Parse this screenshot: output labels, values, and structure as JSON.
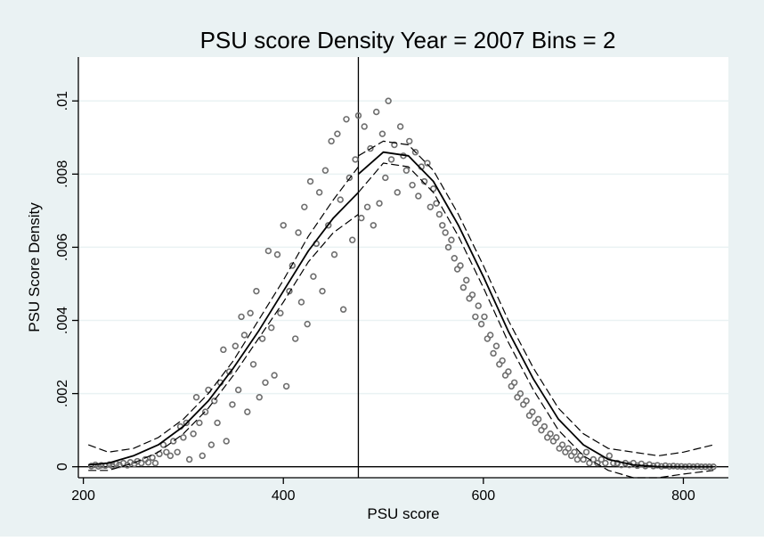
{
  "chart_data": {
    "type": "scatter",
    "title": "PSU score Density Year = 2007 Bins = 2",
    "xlabel": "PSU score",
    "ylabel": "PSU Score Density",
    "xlim": [
      195,
      845
    ],
    "ylim": [
      -0.0003,
      0.0112
    ],
    "x_ticks": [
      200,
      400,
      600,
      800
    ],
    "x_tick_labels": [
      "200",
      "400",
      "600",
      "800"
    ],
    "y_ticks": [
      0,
      0.002,
      0.004,
      0.006,
      0.008,
      0.01
    ],
    "y_tick_labels": [
      "0",
      ".002",
      ".004",
      ".006",
      ".008",
      ".01"
    ],
    "grid": "horizontal",
    "legend": "none",
    "cutoff_x": 475,
    "colors": {
      "background": "#eaf2f3",
      "plot_area": "#ffffff",
      "gridline": "#eaf2f3",
      "points": "#6e6e6e",
      "lines": "#000000"
    },
    "points": [
      [
        208,
        2e-05
      ],
      [
        212,
        5e-05
      ],
      [
        215,
        1e-05
      ],
      [
        218,
        4e-05
      ],
      [
        222,
        3e-05
      ],
      [
        226,
        6e-05
      ],
      [
        229,
        2e-05
      ],
      [
        233,
        8e-05
      ],
      [
        236,
        5e-05
      ],
      [
        240,
        0.0001
      ],
      [
        244,
        4e-05
      ],
      [
        247,
        0.00012
      ],
      [
        251,
        8e-05
      ],
      [
        254,
        0.00015
      ],
      [
        258,
        0.0001
      ],
      [
        262,
        0.0002
      ],
      [
        265,
        0.00012
      ],
      [
        269,
        0.00025
      ],
      [
        272,
        0.0001
      ],
      [
        276,
        0.00035
      ],
      [
        280,
        0.0006
      ],
      [
        283,
        0.0004
      ],
      [
        287,
        0.0003
      ],
      [
        290,
        0.0007
      ],
      [
        294,
        0.0004
      ],
      [
        297,
        0.0011
      ],
      [
        300,
        0.0008
      ],
      [
        303,
        0.0012
      ],
      [
        306,
        0.0002
      ],
      [
        310,
        0.0009
      ],
      [
        313,
        0.0019
      ],
      [
        316,
        0.0012
      ],
      [
        319,
        0.0003
      ],
      [
        322,
        0.0015
      ],
      [
        325,
        0.0021
      ],
      [
        328,
        0.0006
      ],
      [
        331,
        0.0018
      ],
      [
        334,
        0.0012
      ],
      [
        337,
        0.0023
      ],
      [
        340,
        0.0032
      ],
      [
        343,
        0.0007
      ],
      [
        346,
        0.0026
      ],
      [
        349,
        0.0017
      ],
      [
        352,
        0.0033
      ],
      [
        355,
        0.0021
      ],
      [
        358,
        0.0041
      ],
      [
        361,
        0.0036
      ],
      [
        364,
        0.0015
      ],
      [
        367,
        0.0042
      ],
      [
        370,
        0.0028
      ],
      [
        373,
        0.0048
      ],
      [
        376,
        0.0019
      ],
      [
        379,
        0.0035
      ],
      [
        382,
        0.0023
      ],
      [
        385,
        0.0059
      ],
      [
        388,
        0.0038
      ],
      [
        391,
        0.0025
      ],
      [
        394,
        0.0058
      ],
      [
        397,
        0.0042
      ],
      [
        400,
        0.0066
      ],
      [
        403,
        0.0022
      ],
      [
        406,
        0.0048
      ],
      [
        409,
        0.0055
      ],
      [
        412,
        0.0035
      ],
      [
        415,
        0.0064
      ],
      [
        418,
        0.0045
      ],
      [
        421,
        0.0071
      ],
      [
        424,
        0.0039
      ],
      [
        427,
        0.0078
      ],
      [
        430,
        0.0052
      ],
      [
        433,
        0.0061
      ],
      [
        436,
        0.0075
      ],
      [
        439,
        0.0048
      ],
      [
        442,
        0.0081
      ],
      [
        445,
        0.0066
      ],
      [
        448,
        0.0089
      ],
      [
        451,
        0.0058
      ],
      [
        454,
        0.0091
      ],
      [
        457,
        0.0073
      ],
      [
        460,
        0.0043
      ],
      [
        463,
        0.0095
      ],
      [
        466,
        0.0079
      ],
      [
        469,
        0.0062
      ],
      [
        472,
        0.0084
      ],
      [
        475,
        0.0096
      ],
      [
        478,
        0.0068
      ],
      [
        481,
        0.0093
      ],
      [
        484,
        0.0071
      ],
      [
        487,
        0.0087
      ],
      [
        490,
        0.0066
      ],
      [
        493,
        0.0097
      ],
      [
        496,
        0.0072
      ],
      [
        499,
        0.0091
      ],
      [
        502,
        0.0079
      ],
      [
        505,
        0.01
      ],
      [
        508,
        0.0084
      ],
      [
        511,
        0.0088
      ],
      [
        514,
        0.0075
      ],
      [
        517,
        0.0093
      ],
      [
        520,
        0.0085
      ],
      [
        523,
        0.0081
      ],
      [
        526,
        0.0089
      ],
      [
        529,
        0.0077
      ],
      [
        532,
        0.0086
      ],
      [
        535,
        0.0074
      ],
      [
        538,
        0.0082
      ],
      [
        541,
        0.0078
      ],
      [
        544,
        0.0083
      ],
      [
        547,
        0.0071
      ],
      [
        550,
        0.0076
      ],
      [
        553,
        0.0072
      ],
      [
        556,
        0.0069
      ],
      [
        559,
        0.0066
      ],
      [
        562,
        0.0064
      ],
      [
        565,
        0.006
      ],
      [
        568,
        0.0062
      ],
      [
        571,
        0.0057
      ],
      [
        574,
        0.0054
      ],
      [
        577,
        0.0055
      ],
      [
        580,
        0.0049
      ],
      [
        583,
        0.0051
      ],
      [
        586,
        0.0046
      ],
      [
        589,
        0.0047
      ],
      [
        592,
        0.0041
      ],
      [
        595,
        0.0044
      ],
      [
        598,
        0.0039
      ],
      [
        601,
        0.0041
      ],
      [
        604,
        0.0035
      ],
      [
        607,
        0.0036
      ],
      [
        610,
        0.0031
      ],
      [
        613,
        0.0033
      ],
      [
        616,
        0.0028
      ],
      [
        619,
        0.0029
      ],
      [
        622,
        0.0025
      ],
      [
        625,
        0.0026
      ],
      [
        628,
        0.0022
      ],
      [
        631,
        0.0023
      ],
      [
        634,
        0.0019
      ],
      [
        637,
        0.002
      ],
      [
        640,
        0.0017
      ],
      [
        643,
        0.0018
      ],
      [
        646,
        0.0014
      ],
      [
        649,
        0.0015
      ],
      [
        652,
        0.0012
      ],
      [
        655,
        0.0013
      ],
      [
        658,
        0.001
      ],
      [
        661,
        0.0011
      ],
      [
        664,
        0.0008
      ],
      [
        667,
        0.0009
      ],
      [
        670,
        0.0007
      ],
      [
        673,
        0.0008
      ],
      [
        676,
        0.0005
      ],
      [
        679,
        0.0006
      ],
      [
        682,
        0.0004
      ],
      [
        685,
        0.0005
      ],
      [
        688,
        0.0003
      ],
      [
        691,
        0.0004
      ],
      [
        694,
        0.0002
      ],
      [
        697,
        0.0003
      ],
      [
        700,
        0.0002
      ],
      [
        703,
        0.0004
      ],
      [
        706,
        0.0001
      ],
      [
        710,
        0.0002
      ],
      [
        714,
        0.0001
      ],
      [
        718,
        0.0002
      ],
      [
        722,
        0.0001
      ],
      [
        726,
        0.0003
      ],
      [
        730,
        0.0001
      ],
      [
        734,
        0.0001
      ],
      [
        738,
        5e-05
      ],
      [
        742,
        0.0001
      ],
      [
        746,
        5e-05
      ],
      [
        750,
        0.0001
      ],
      [
        754,
        3e-05
      ],
      [
        758,
        8e-05
      ],
      [
        762,
        2e-05
      ],
      [
        766,
        6e-05
      ],
      [
        770,
        2e-05
      ],
      [
        774,
        4e-05
      ],
      [
        778,
        1e-05
      ],
      [
        782,
        3e-05
      ],
      [
        786,
        1e-05
      ],
      [
        790,
        2e-05
      ],
      [
        794,
        1e-05
      ],
      [
        798,
        1e-05
      ],
      [
        802,
        0.0
      ],
      [
        806,
        1e-05
      ],
      [
        810,
        0.0
      ],
      [
        814,
        1e-05
      ],
      [
        818,
        0.0
      ],
      [
        822,
        0.0
      ],
      [
        826,
        0.0
      ],
      [
        830,
        0.0
      ]
    ],
    "fit_left": {
      "x": [
        205,
        225,
        250,
        275,
        300,
        325,
        350,
        375,
        400,
        425,
        450,
        475
      ],
      "y": [
        5e-05,
        0.0001,
        0.0003,
        0.0006,
        0.0011,
        0.0018,
        0.0027,
        0.0037,
        0.0048,
        0.0059,
        0.0068,
        0.0075
      ]
    },
    "ci_left_upper": {
      "x": [
        205,
        225,
        250,
        275,
        300,
        325,
        350,
        375,
        400,
        425,
        450,
        475
      ],
      "y": [
        0.0006,
        0.0004,
        0.0005,
        0.0008,
        0.0013,
        0.002,
        0.0029,
        0.004,
        0.0051,
        0.0063,
        0.0073,
        0.0082
      ]
    },
    "ci_left_lower": {
      "x": [
        205,
        225,
        250,
        275,
        300,
        325,
        350,
        375,
        400,
        425,
        450,
        475
      ],
      "y": [
        -0.0001,
        -0.0001,
        0.0001,
        0.0004,
        0.0009,
        0.0016,
        0.0025,
        0.0035,
        0.0045,
        0.0056,
        0.0064,
        0.0069
      ]
    },
    "fit_right": {
      "x": [
        475,
        500,
        525,
        550,
        575,
        600,
        625,
        650,
        675,
        700,
        725,
        750,
        775,
        800,
        830
      ],
      "y": [
        0.008,
        0.0086,
        0.0085,
        0.0078,
        0.0066,
        0.0052,
        0.0037,
        0.0024,
        0.0013,
        0.0006,
        0.0002,
        5e-05,
        0.0,
        0.0,
        0.0
      ]
    },
    "ci_right_upper": {
      "x": [
        475,
        500,
        525,
        550,
        575,
        600,
        625,
        650,
        675,
        700,
        725,
        750,
        775,
        800,
        830
      ],
      "y": [
        0.0085,
        0.0089,
        0.0088,
        0.0081,
        0.0069,
        0.0055,
        0.004,
        0.0027,
        0.0016,
        0.0009,
        0.0005,
        0.0004,
        0.0003,
        0.0004,
        0.0006
      ]
    },
    "ci_right_lower": {
      "x": [
        475,
        500,
        525,
        550,
        575,
        600,
        625,
        650,
        675,
        700,
        725,
        750,
        775,
        800,
        830
      ],
      "y": [
        0.0075,
        0.0083,
        0.0082,
        0.0075,
        0.0063,
        0.0049,
        0.0034,
        0.0021,
        0.001,
        0.0003,
        -0.0001,
        -0.0003,
        -0.0003,
        -0.0002,
        -0.0001
      ]
    }
  }
}
